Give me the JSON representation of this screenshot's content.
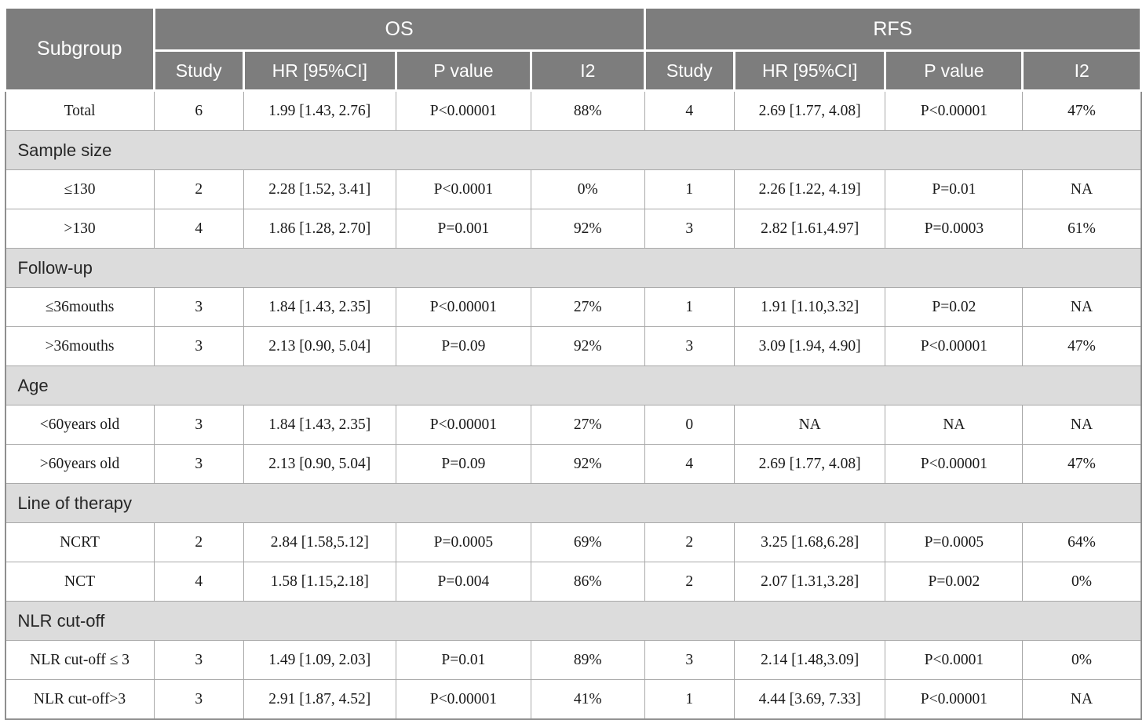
{
  "colors": {
    "header_bg": "#7d7d7d",
    "section_bg": "#dcdcdc",
    "border": "#a9a9a9",
    "outer_border": "#8f8f8f",
    "header_text": "#ffffff",
    "body_text": "#1a1a1a"
  },
  "table": {
    "corner_header": "Subgroup",
    "groups": [
      {
        "label": "OS"
      },
      {
        "label": "RFS"
      }
    ],
    "subheaders": [
      "Study",
      "HR [95%CI]",
      "P value",
      "I2"
    ],
    "column_names": [
      "subgroup-cell",
      "os-study-cell",
      "os-hr-cell",
      "os-pvalue-cell",
      "os-i2-cell",
      "rfs-study-cell",
      "rfs-hr-cell",
      "rfs-pvalue-cell",
      "rfs-i2-cell"
    ],
    "rows": [
      {
        "type": "data",
        "cells": [
          "Total",
          "6",
          "1.99 [1.43, 2.76]",
          "P<0.00001",
          "88%",
          "4",
          "2.69 [1.77, 4.08]",
          "P<0.00001",
          "47%"
        ]
      },
      {
        "type": "section",
        "label": "Sample size"
      },
      {
        "type": "data",
        "cells": [
          "≤130",
          "2",
          "2.28 [1.52, 3.41]",
          "P<0.0001",
          "0%",
          "1",
          "2.26 [1.22, 4.19]",
          "P=0.01",
          "NA"
        ]
      },
      {
        "type": "data",
        "cells": [
          ">130",
          "4",
          "1.86 [1.28, 2.70]",
          "P=0.001",
          "92%",
          "3",
          "2.82 [1.61,4.97]",
          "P=0.0003",
          "61%"
        ]
      },
      {
        "type": "section",
        "label": "Follow-up"
      },
      {
        "type": "data",
        "cells": [
          "≤36mouths",
          "3",
          "1.84 [1.43, 2.35]",
          "P<0.00001",
          "27%",
          "1",
          "1.91 [1.10,3.32]",
          "P=0.02",
          "NA"
        ]
      },
      {
        "type": "data",
        "cells": [
          ">36mouths",
          "3",
          "2.13 [0.90, 5.04]",
          "P=0.09",
          "92%",
          "3",
          "3.09 [1.94, 4.90]",
          "P<0.00001",
          "47%"
        ]
      },
      {
        "type": "section",
        "label": "Age"
      },
      {
        "type": "data",
        "cells": [
          "<60years old",
          "3",
          "1.84 [1.43, 2.35]",
          "P<0.00001",
          "27%",
          "0",
          "NA",
          "NA",
          "NA"
        ]
      },
      {
        "type": "data",
        "cells": [
          ">60years old",
          "3",
          "2.13 [0.90, 5.04]",
          "P=0.09",
          "92%",
          "4",
          "2.69 [1.77, 4.08]",
          "P<0.00001",
          "47%"
        ]
      },
      {
        "type": "section",
        "label": "Line of therapy"
      },
      {
        "type": "data",
        "cells": [
          "NCRT",
          "2",
          "2.84 [1.58,5.12]",
          "P=0.0005",
          "69%",
          "2",
          "3.25 [1.68,6.28]",
          "P=0.0005",
          "64%"
        ]
      },
      {
        "type": "data",
        "cells": [
          "NCT",
          "4",
          "1.58 [1.15,2.18]",
          "P=0.004",
          "86%",
          "2",
          "2.07 [1.31,3.28]",
          "P=0.002",
          "0%"
        ]
      },
      {
        "type": "section",
        "label": "NLR cut-off"
      },
      {
        "type": "data",
        "cells": [
          "NLR cut-off ≤ 3",
          "3",
          "1.49 [1.09, 2.03]",
          "P=0.01",
          "89%",
          "3",
          "2.14 [1.48,3.09]",
          "P<0.0001",
          "0%"
        ]
      },
      {
        "type": "data",
        "cells": [
          "NLR cut-off>3",
          "3",
          "2.91 [1.87, 4.52]",
          "P<0.00001",
          "41%",
          "1",
          "4.44 [3.69, 7.33]",
          "P<0.00001",
          "NA"
        ]
      }
    ]
  }
}
